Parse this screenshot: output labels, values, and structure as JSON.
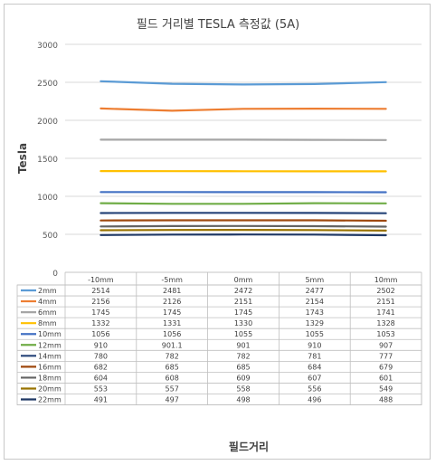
{
  "chart_data": {
    "type": "line",
    "title": "필드 거리별 TESLA 측정값 (5A)",
    "xlabel": "필드거리",
    "ylabel": "Tesla",
    "ylim": [
      0,
      3000
    ],
    "yticks": [
      0,
      500,
      1000,
      1500,
      2000,
      2500,
      3000
    ],
    "grid": true,
    "legend": "data-table",
    "categories": [
      "-10mm",
      "-5mm",
      "0mm",
      "5mm",
      "10mm"
    ],
    "series": [
      {
        "name": "2mm",
        "color": "#5b9bd5",
        "values": [
          2514,
          2481,
          2472,
          2477,
          2502
        ],
        "labels": [
          "2514",
          "2481",
          "2472",
          "2477",
          "2502"
        ]
      },
      {
        "name": "4mm",
        "color": "#ed7d31",
        "values": [
          2156,
          2126,
          2151,
          2154,
          2151
        ],
        "labels": [
          "2156",
          "2126",
          "2151",
          "2154",
          "2151"
        ]
      },
      {
        "name": "6mm",
        "color": "#a5a5a5",
        "values": [
          1745,
          1745,
          1745,
          1743,
          1741
        ],
        "labels": [
          "1745",
          "1745",
          "1745",
          "1743",
          "1741"
        ]
      },
      {
        "name": "8mm",
        "color": "#ffc000",
        "values": [
          1332,
          1331,
          1330,
          1329,
          1328
        ],
        "labels": [
          "1332",
          "1331",
          "1330",
          "1329",
          "1328"
        ]
      },
      {
        "name": "10mm",
        "color": "#4472c4",
        "values": [
          1056,
          1056,
          1055,
          1055,
          1053
        ],
        "labels": [
          "1056",
          "1056",
          "1055",
          "1055",
          "1053"
        ]
      },
      {
        "name": "12mm",
        "color": "#70ad47",
        "values": [
          910,
          901.1,
          901,
          910,
          907
        ],
        "labels": [
          "910",
          "901.1",
          "901",
          "910",
          "907"
        ]
      },
      {
        "name": "14mm",
        "color": "#264478",
        "values": [
          780,
          782,
          782,
          781,
          777
        ],
        "labels": [
          "780",
          "782",
          "782",
          "781",
          "777"
        ]
      },
      {
        "name": "16mm",
        "color": "#9e480e",
        "values": [
          682,
          685,
          685,
          684,
          679
        ],
        "labels": [
          "682",
          "685",
          "685",
          "684",
          "679"
        ]
      },
      {
        "name": "18mm",
        "color": "#636363",
        "values": [
          604,
          608,
          609,
          607,
          601
        ],
        "labels": [
          "604",
          "608",
          "609",
          "607",
          "601"
        ]
      },
      {
        "name": "20mm",
        "color": "#997300",
        "values": [
          553,
          557,
          558,
          556,
          549
        ],
        "labels": [
          "553",
          "557",
          "558",
          "556",
          "549"
        ]
      },
      {
        "name": "22mm",
        "color": "#1f3864",
        "values": [
          491,
          497,
          498,
          496,
          488
        ],
        "labels": [
          "491",
          "497",
          "498",
          "496",
          "488"
        ]
      }
    ]
  }
}
